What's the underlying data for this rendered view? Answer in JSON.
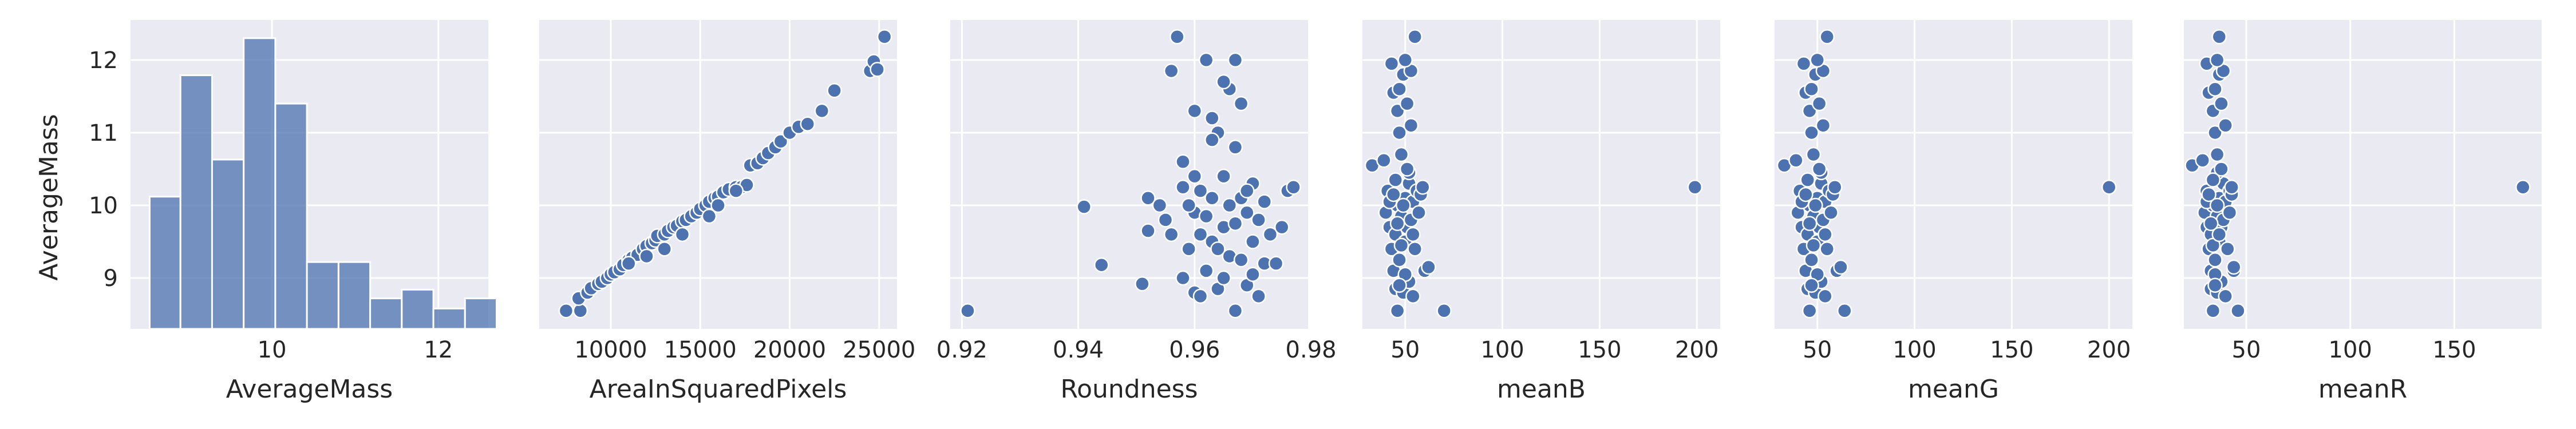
{
  "colors": {
    "accent": "#4c72b0",
    "panel_background": "#eaeaf2",
    "grid": "#ffffff"
  },
  "chart_data": [
    {
      "type": "bar",
      "subtype": "histogram",
      "title": "",
      "xlabel": "AverageMass",
      "ylabel": "AverageMass",
      "xlim": [
        8.3,
        12.6
      ],
      "ylim": [
        8.3,
        12.55
      ],
      "xticks": [
        10,
        12
      ],
      "xtick_labels": [
        "10",
        "12"
      ],
      "yticks": [
        9,
        10,
        11,
        12
      ],
      "ytick_labels": [
        "9",
        "10",
        "11",
        "12"
      ],
      "bins": [
        {
          "x0": 8.53,
          "x1": 8.9,
          "value": 10.12
        },
        {
          "x0": 8.9,
          "x1": 9.28,
          "value": 11.79
        },
        {
          "x0": 9.28,
          "x1": 9.66,
          "value": 10.63
        },
        {
          "x0": 9.66,
          "x1": 10.04,
          "value": 12.3
        },
        {
          "x0": 10.04,
          "x1": 10.42,
          "value": 11.4
        },
        {
          "x0": 10.42,
          "x1": 10.8,
          "value": 9.22
        },
        {
          "x0": 10.8,
          "x1": 11.18,
          "value": 9.22
        },
        {
          "x0": 11.18,
          "x1": 11.56,
          "value": 8.72
        },
        {
          "x0": 11.56,
          "x1": 11.94,
          "value": 8.84
        },
        {
          "x0": 11.94,
          "x1": 12.32,
          "value": 8.58
        },
        {
          "x0": 12.32,
          "x1": 12.7,
          "value": 8.72
        }
      ]
    },
    {
      "type": "scatter",
      "xlabel": "AreaInSquaredPixels",
      "xlim": [
        6000,
        26000
      ],
      "ylim": [
        8.3,
        12.55
      ],
      "xticks": [
        10000,
        15000,
        20000,
        25000
      ],
      "xtick_labels": [
        "10000",
        "15000",
        "20000",
        "25000"
      ],
      "points": [
        [
          7500,
          8.55
        ],
        [
          8300,
          8.55
        ],
        [
          8200,
          8.72
        ],
        [
          8700,
          8.8
        ],
        [
          8900,
          8.86
        ],
        [
          9300,
          8.92
        ],
        [
          9500,
          8.95
        ],
        [
          9800,
          9.0
        ],
        [
          10000,
          9.05
        ],
        [
          10200,
          9.08
        ],
        [
          10500,
          9.12
        ],
        [
          10700,
          9.18
        ],
        [
          11000,
          9.25
        ],
        [
          11200,
          9.28
        ],
        [
          11500,
          9.32
        ],
        [
          11800,
          9.4
        ],
        [
          12000,
          9.44
        ],
        [
          12300,
          9.48
        ],
        [
          12500,
          9.52
        ],
        [
          12600,
          9.58
        ],
        [
          13000,
          9.6
        ],
        [
          13200,
          9.65
        ],
        [
          13500,
          9.7
        ],
        [
          13700,
          9.72
        ],
        [
          14000,
          9.78
        ],
        [
          14200,
          9.8
        ],
        [
          14500,
          9.85
        ],
        [
          14800,
          9.9
        ],
        [
          15000,
          9.95
        ],
        [
          15300,
          10.0
        ],
        [
          15500,
          10.05
        ],
        [
          15800,
          10.1
        ],
        [
          16000,
          10.12
        ],
        [
          16300,
          10.18
        ],
        [
          16600,
          10.22
        ],
        [
          17000,
          10.25
        ],
        [
          17300,
          10.25
        ],
        [
          17600,
          10.28
        ],
        [
          17800,
          10.55
        ],
        [
          18200,
          10.58
        ],
        [
          18500,
          10.65
        ],
        [
          18800,
          10.72
        ],
        [
          19200,
          10.8
        ],
        [
          19500,
          10.88
        ],
        [
          20000,
          11.0
        ],
        [
          20500,
          11.08
        ],
        [
          21000,
          11.12
        ],
        [
          21800,
          11.3
        ],
        [
          22500,
          11.58
        ],
        [
          24500,
          11.85
        ],
        [
          24700,
          11.98
        ],
        [
          24900,
          11.87
        ],
        [
          25300,
          12.32
        ],
        [
          13000,
          9.4
        ],
        [
          14000,
          9.6
        ],
        [
          15500,
          9.85
        ],
        [
          16000,
          10.0
        ],
        [
          12000,
          9.3
        ],
        [
          11000,
          9.2
        ],
        [
          17000,
          10.2
        ]
      ]
    },
    {
      "type": "scatter",
      "xlabel": "Roundness",
      "xlim": [
        0.918,
        0.9795
      ],
      "ylim": [
        8.3,
        12.55
      ],
      "xticks": [
        0.92,
        0.94,
        0.96,
        0.98
      ],
      "xtick_labels": [
        "0.92",
        "0.94",
        "0.96",
        "0.98"
      ],
      "points": [
        [
          0.921,
          8.55
        ],
        [
          0.941,
          9.98
        ],
        [
          0.944,
          9.18
        ],
        [
          0.951,
          8.92
        ],
        [
          0.952,
          10.1
        ],
        [
          0.952,
          9.65
        ],
        [
          0.954,
          10.0
        ],
        [
          0.955,
          9.8
        ],
        [
          0.956,
          9.6
        ],
        [
          0.956,
          11.85
        ],
        [
          0.957,
          12.32
        ],
        [
          0.958,
          10.25
        ],
        [
          0.958,
          10.6
        ],
        [
          0.959,
          9.4
        ],
        [
          0.96,
          8.8
        ],
        [
          0.96,
          9.9
        ],
        [
          0.961,
          10.2
        ],
        [
          0.961,
          8.75
        ],
        [
          0.962,
          9.1
        ],
        [
          0.962,
          12.0
        ],
        [
          0.963,
          9.5
        ],
        [
          0.963,
          11.2
        ],
        [
          0.964,
          11.0
        ],
        [
          0.964,
          8.85
        ],
        [
          0.965,
          9.7
        ],
        [
          0.965,
          10.4
        ],
        [
          0.966,
          11.6
        ],
        [
          0.966,
          9.3
        ],
        [
          0.967,
          8.55
        ],
        [
          0.967,
          12.0
        ],
        [
          0.968,
          10.1
        ],
        [
          0.968,
          11.4
        ],
        [
          0.969,
          9.9
        ],
        [
          0.969,
          8.9
        ],
        [
          0.97,
          10.3
        ],
        [
          0.97,
          9.5
        ],
        [
          0.971,
          8.75
        ],
        [
          0.971,
          9.8
        ],
        [
          0.972,
          9.2
        ],
        [
          0.972,
          10.05
        ],
        [
          0.973,
          9.6
        ],
        [
          0.974,
          9.2
        ],
        [
          0.975,
          9.7
        ],
        [
          0.976,
          10.2
        ],
        [
          0.977,
          10.25
        ],
        [
          0.958,
          9.0
        ],
        [
          0.959,
          10.0
        ],
        [
          0.96,
          10.4
        ],
        [
          0.961,
          9.6
        ],
        [
          0.962,
          9.85
        ],
        [
          0.963,
          10.1
        ],
        [
          0.964,
          9.4
        ],
        [
          0.965,
          9.0
        ],
        [
          0.966,
          10.0
        ],
        [
          0.967,
          9.75
        ],
        [
          0.968,
          9.25
        ],
        [
          0.969,
          10.2
        ],
        [
          0.97,
          9.05
        ],
        [
          0.96,
          11.3
        ],
        [
          0.963,
          10.9
        ],
        [
          0.965,
          11.7
        ],
        [
          0.967,
          10.8
        ]
      ]
    },
    {
      "type": "scatter",
      "xlabel": "meanB",
      "xlim": [
        28,
        212
      ],
      "ylim": [
        8.3,
        12.55
      ],
      "xticks": [
        50,
        100,
        150,
        200
      ],
      "xtick_labels": [
        "50",
        "100",
        "150",
        "200"
      ],
      "points": [
        [
          33,
          10.55
        ],
        [
          39,
          10.62
        ],
        [
          40,
          9.9
        ],
        [
          41,
          10.2
        ],
        [
          42,
          9.7
        ],
        [
          43,
          9.4
        ],
        [
          43,
          11.95
        ],
        [
          44,
          11.55
        ],
        [
          44,
          9.1
        ],
        [
          45,
          9.6
        ],
        [
          45,
          8.85
        ],
        [
          46,
          11.3
        ],
        [
          46,
          10.0
        ],
        [
          46,
          8.55
        ],
        [
          47,
          9.25
        ],
        [
          47,
          11.0
        ],
        [
          48,
          10.7
        ],
        [
          48,
          9.85
        ],
        [
          49,
          8.8
        ],
        [
          49,
          11.8
        ],
        [
          50,
          10.1
        ],
        [
          50,
          9.5
        ],
        [
          51,
          9.7
        ],
        [
          51,
          11.4
        ],
        [
          52,
          8.95
        ],
        [
          52,
          10.3
        ],
        [
          53,
          9.8
        ],
        [
          53,
          11.1
        ],
        [
          54,
          10.05
        ],
        [
          54,
          8.75
        ],
        [
          55,
          12.32
        ],
        [
          55,
          9.4
        ],
        [
          56,
          10.2
        ],
        [
          57,
          9.9
        ],
        [
          58,
          10.15
        ],
        [
          59,
          10.25
        ],
        [
          60,
          9.1
        ],
        [
          62,
          9.15
        ],
        [
          70,
          8.55
        ],
        [
          199,
          10.25
        ],
        [
          42,
          10.05
        ],
        [
          44,
          10.15
        ],
        [
          46,
          9.75
        ],
        [
          48,
          9.45
        ],
        [
          50,
          9.05
        ],
        [
          52,
          10.45
        ],
        [
          54,
          9.6
        ],
        [
          47,
          8.9
        ],
        [
          49,
          10.0
        ],
        [
          51,
          10.5
        ],
        [
          45,
          10.35
        ],
        [
          53,
          11.85
        ],
        [
          47,
          11.6
        ],
        [
          50,
          12.0
        ]
      ]
    },
    {
      "type": "scatter",
      "xlabel": "meanG",
      "xlim": [
        28,
        212
      ],
      "ylim": [
        8.3,
        12.55
      ],
      "xticks": [
        50,
        100,
        150,
        200
      ],
      "xtick_labels": [
        "50",
        "100",
        "150",
        "200"
      ],
      "points": [
        [
          33,
          10.55
        ],
        [
          39,
          10.62
        ],
        [
          40,
          9.9
        ],
        [
          41,
          10.2
        ],
        [
          42,
          9.7
        ],
        [
          43,
          9.4
        ],
        [
          43,
          11.95
        ],
        [
          44,
          11.55
        ],
        [
          44,
          9.1
        ],
        [
          45,
          9.6
        ],
        [
          45,
          8.85
        ],
        [
          46,
          11.3
        ],
        [
          46,
          10.0
        ],
        [
          46,
          8.55
        ],
        [
          47,
          9.25
        ],
        [
          47,
          11.0
        ],
        [
          48,
          10.7
        ],
        [
          48,
          9.85
        ],
        [
          49,
          8.8
        ],
        [
          49,
          11.8
        ],
        [
          50,
          10.1
        ],
        [
          50,
          9.5
        ],
        [
          51,
          9.7
        ],
        [
          51,
          11.4
        ],
        [
          52,
          8.95
        ],
        [
          52,
          10.3
        ],
        [
          53,
          9.8
        ],
        [
          53,
          11.1
        ],
        [
          54,
          10.05
        ],
        [
          54,
          8.75
        ],
        [
          55,
          12.32
        ],
        [
          55,
          9.4
        ],
        [
          56,
          10.2
        ],
        [
          57,
          9.9
        ],
        [
          58,
          10.15
        ],
        [
          59,
          10.25
        ],
        [
          60,
          9.1
        ],
        [
          62,
          9.15
        ],
        [
          64,
          8.55
        ],
        [
          200,
          10.25
        ],
        [
          42,
          10.05
        ],
        [
          44,
          10.15
        ],
        [
          46,
          9.75
        ],
        [
          48,
          9.45
        ],
        [
          50,
          9.05
        ],
        [
          52,
          10.45
        ],
        [
          54,
          9.6
        ],
        [
          47,
          8.9
        ],
        [
          49,
          10.0
        ],
        [
          51,
          10.5
        ],
        [
          45,
          10.35
        ],
        [
          53,
          11.85
        ],
        [
          47,
          11.6
        ],
        [
          50,
          12.0
        ]
      ]
    },
    {
      "type": "scatter",
      "xlabel": "meanR",
      "xlim": [
        20,
        192
      ],
      "ylim": [
        8.3,
        12.55
      ],
      "xticks": [
        50,
        100,
        150
      ],
      "xtick_labels": [
        "50",
        "100",
        "150"
      ],
      "points": [
        [
          24,
          10.55
        ],
        [
          29,
          10.62
        ],
        [
          30,
          9.9
        ],
        [
          31,
          10.2
        ],
        [
          31,
          9.7
        ],
        [
          32,
          9.4
        ],
        [
          31,
          11.95
        ],
        [
          32,
          11.55
        ],
        [
          33,
          9.1
        ],
        [
          33,
          9.6
        ],
        [
          33,
          8.85
        ],
        [
          34,
          11.3
        ],
        [
          34,
          10.0
        ],
        [
          34,
          8.55
        ],
        [
          35,
          9.25
        ],
        [
          35,
          11.0
        ],
        [
          36,
          10.7
        ],
        [
          36,
          9.85
        ],
        [
          36,
          8.8
        ],
        [
          37,
          11.8
        ],
        [
          37,
          10.1
        ],
        [
          37,
          9.5
        ],
        [
          38,
          9.7
        ],
        [
          38,
          11.4
        ],
        [
          38,
          8.95
        ],
        [
          39,
          10.3
        ],
        [
          39,
          9.8
        ],
        [
          40,
          11.1
        ],
        [
          40,
          10.05
        ],
        [
          40,
          8.75
        ],
        [
          37,
          12.32
        ],
        [
          41,
          9.4
        ],
        [
          42,
          10.2
        ],
        [
          42,
          9.9
        ],
        [
          43,
          10.15
        ],
        [
          43,
          10.25
        ],
        [
          44,
          9.1
        ],
        [
          44,
          9.15
        ],
        [
          46,
          8.55
        ],
        [
          183,
          10.25
        ],
        [
          31,
          10.05
        ],
        [
          32,
          10.15
        ],
        [
          33,
          9.75
        ],
        [
          34,
          9.45
        ],
        [
          35,
          9.05
        ],
        [
          36,
          10.45
        ],
        [
          37,
          9.6
        ],
        [
          35,
          8.9
        ],
        [
          36,
          10.0
        ],
        [
          38,
          10.5
        ],
        [
          34,
          10.35
        ],
        [
          39,
          11.85
        ],
        [
          35,
          11.6
        ],
        [
          36,
          12.0
        ]
      ]
    }
  ]
}
